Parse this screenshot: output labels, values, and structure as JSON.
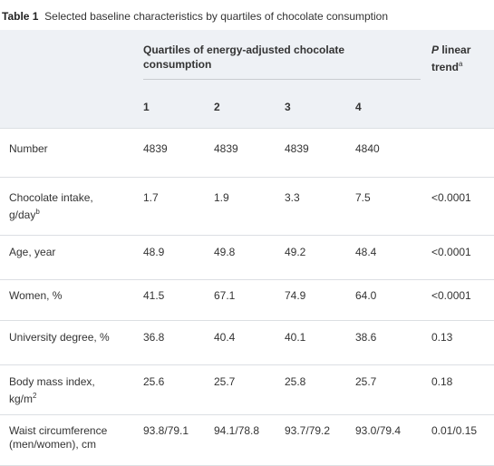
{
  "caption": {
    "label": "Table 1",
    "text": "Selected baseline characteristics by quartiles of chocolate consumption"
  },
  "header": {
    "group_line1": "Quartiles of energy-adjusted chocolate",
    "group_line2": "consumption",
    "ptrend_p": "P",
    "ptrend_rest": " linear",
    "ptrend_line2": "trend",
    "ptrend_sup": "a",
    "quartiles": [
      "1",
      "2",
      "3",
      "4"
    ]
  },
  "rows": [
    {
      "label": "Number",
      "label2": "",
      "sup": "",
      "values": [
        "4839",
        "4839",
        "4839",
        "4840"
      ],
      "p": ""
    },
    {
      "label": "Chocolate intake,",
      "label2": "g/day",
      "sup": "b",
      "values": [
        "1.7",
        "1.9",
        "3.3",
        "7.5"
      ],
      "p": "<0.0001"
    },
    {
      "label": "Age, year",
      "label2": "",
      "sup": "",
      "values": [
        "48.9",
        "49.8",
        "49.2",
        "48.4"
      ],
      "p": "<0.0001"
    },
    {
      "label": "Women, %",
      "label2": "",
      "sup": "",
      "values": [
        "41.5",
        "67.1",
        "74.9",
        "64.0"
      ],
      "p": "<0.0001"
    },
    {
      "label": "University degree, %",
      "label2": "",
      "sup": "",
      "values": [
        "36.8",
        "40.4",
        "40.1",
        "38.6"
      ],
      "p": "0.13"
    },
    {
      "label": "Body mass index,",
      "label2": "kg/m",
      "sup": "2",
      "values": [
        "25.6",
        "25.7",
        "25.8",
        "25.7"
      ],
      "p": "0.18"
    },
    {
      "label": "Waist circumference",
      "label2": "(men/women), cm",
      "sup": "",
      "values": [
        "93.8/79.1",
        "94.1/78.8",
        "93.7/79.2",
        "93.0/79.4"
      ],
      "p": "0.01/0.15"
    }
  ]
}
